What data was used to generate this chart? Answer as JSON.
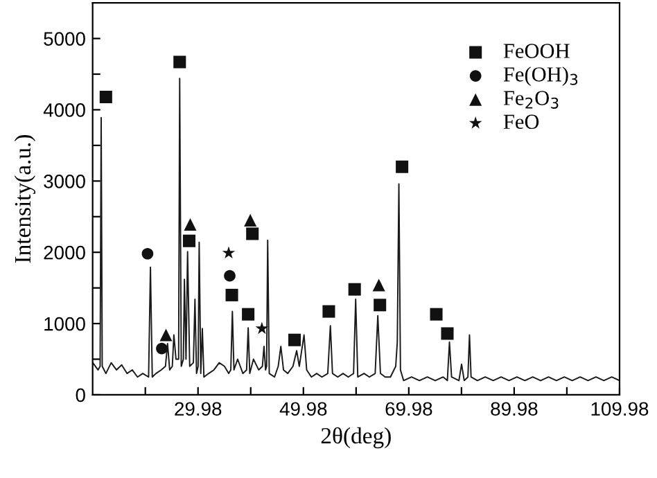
{
  "chart_data": {
    "type": "line",
    "xlabel": "2θ(deg)",
    "ylabel": "Intensity(a.u.)",
    "xlim": [
      9.98,
      109.98
    ],
    "ylim": [
      0,
      5500
    ],
    "xticks": [
      {
        "value": 19.98,
        "label": null
      },
      29.98,
      {
        "value": 39.98,
        "label": null
      },
      49.98,
      {
        "value": 59.98,
        "label": null
      },
      69.98,
      {
        "value": 79.98,
        "label": null
      },
      89.98,
      {
        "value": 99.98,
        "label": null
      },
      109.98
    ],
    "yticks": [
      0,
      {
        "value": 500,
        "label": null
      },
      1000,
      {
        "value": 1500,
        "label": null
      },
      2000,
      {
        "value": 2500,
        "label": null
      },
      3000,
      {
        "value": 3500,
        "label": null
      },
      4000,
      {
        "value": 4500,
        "label": null
      },
      5000
    ],
    "grid": false,
    "legend": "top right",
    "series": [
      {
        "color": "#1a1a1a",
        "line_style": "solid",
        "marker": "none",
        "x": [
          10.0,
          11.0,
          11.4,
          11.6,
          11.8,
          12.5,
          13.5,
          14.5,
          15.5,
          16.5,
          17.5,
          18.5,
          19.5,
          20.6,
          20.95,
          21.3,
          22.0,
          23.0,
          23.8,
          24.2,
          24.6,
          25.1,
          25.4,
          25.8,
          26.3,
          26.5,
          26.8,
          27.2,
          27.4,
          27.7,
          28.0,
          28.4,
          29.1,
          29.4,
          29.7,
          30.0,
          30.2,
          30.5,
          30.8,
          31.1,
          32.0,
          33.0,
          34.0,
          35.0,
          35.8,
          36.2,
          36.5,
          36.8,
          37.5,
          38.5,
          39.2,
          39.5,
          39.8,
          40.5,
          41.5,
          42.2,
          42.5,
          42.8,
          43.0,
          43.2,
          43.5,
          44.5,
          45.2,
          45.7,
          46.2,
          47.0,
          48.0,
          48.7,
          49.2,
          50.1,
          50.6,
          51.5,
          52.5,
          53.5,
          54.6,
          55.1,
          55.5,
          56.5,
          57.5,
          58.5,
          59.5,
          59.9,
          60.3,
          61.5,
          62.5,
          63.6,
          64.1,
          64.6,
          65.5,
          66.5,
          67.5,
          67.8,
          68.1,
          68.4,
          69.0,
          70.5,
          72.0,
          73.5,
          75.0,
          76.5,
          77.3,
          77.7,
          78.1,
          79.5,
          80.0,
          80.5,
          81.2,
          81.5,
          81.8,
          83.0,
          84.5,
          86.0,
          87.5,
          89.0,
          90.5,
          92.0,
          93.5,
          95.0,
          96.5,
          98.0,
          99.5,
          101.0,
          102.5,
          104.0,
          105.5,
          107.0,
          108.5,
          109.98
        ],
        "values": [
          450,
          350,
          400,
          3890,
          400,
          300,
          450,
          350,
          420,
          300,
          350,
          250,
          300,
          250,
          1790,
          250,
          300,
          350,
          400,
          720,
          350,
          400,
          840,
          500,
          500,
          4440,
          400,
          500,
          1620,
          500,
          2010,
          400,
          450,
          1340,
          300,
          400,
          2140,
          300,
          930,
          250,
          300,
          350,
          450,
          400,
          300,
          350,
          1170,
          350,
          500,
          300,
          350,
          940,
          300,
          500,
          350,
          400,
          680,
          350,
          400,
          2170,
          300,
          250,
          400,
          680,
          350,
          300,
          400,
          620,
          400,
          840,
          350,
          250,
          300,
          250,
          300,
          970,
          300,
          250,
          300,
          250,
          300,
          1340,
          250,
          300,
          250,
          300,
          1110,
          300,
          250,
          250,
          400,
          740,
          2960,
          350,
          200,
          250,
          200,
          250,
          200,
          250,
          200,
          740,
          250,
          200,
          430,
          200,
          250,
          840,
          250,
          200,
          250,
          200,
          250,
          200,
          250,
          200,
          250,
          200,
          250,
          200,
          250,
          200,
          250,
          200,
          250,
          200,
          250,
          200
        ]
      },
      {
        "type": "scatter",
        "name": "FeOOH",
        "color": "#111111",
        "marker": "square",
        "x": [
          12.5,
          26.5,
          28.3,
          36.4,
          39.5,
          40.3,
          48.3,
          54.8,
          59.7,
          64.5,
          68.7,
          75.2,
          77.3
        ],
        "values": [
          4180,
          4670,
          2160,
          1400,
          1130,
          2260,
          770,
          1170,
          1480,
          1260,
          3200,
          1130,
          860
        ]
      },
      {
        "type": "scatter",
        "name": "Fe(OH)$_{3}$",
        "color": "#111111",
        "marker": "circle",
        "x": [
          20.4,
          23.1,
          36.0
        ],
        "values": [
          1980,
          650,
          1670
        ]
      },
      {
        "type": "scatter",
        "name": "Fe$_{2}$O$_{3}$",
        "color": "#111111",
        "marker": "triangle",
        "x": [
          23.9,
          28.5,
          39.9,
          64.3
        ],
        "values": [
          840,
          2390,
          2450,
          1540
        ]
      },
      {
        "type": "scatter",
        "name": "FeO",
        "color": "#111111",
        "marker": "star",
        "x": [
          35.8,
          42.1
        ],
        "values": [
          1990,
          930
        ]
      }
    ]
  }
}
